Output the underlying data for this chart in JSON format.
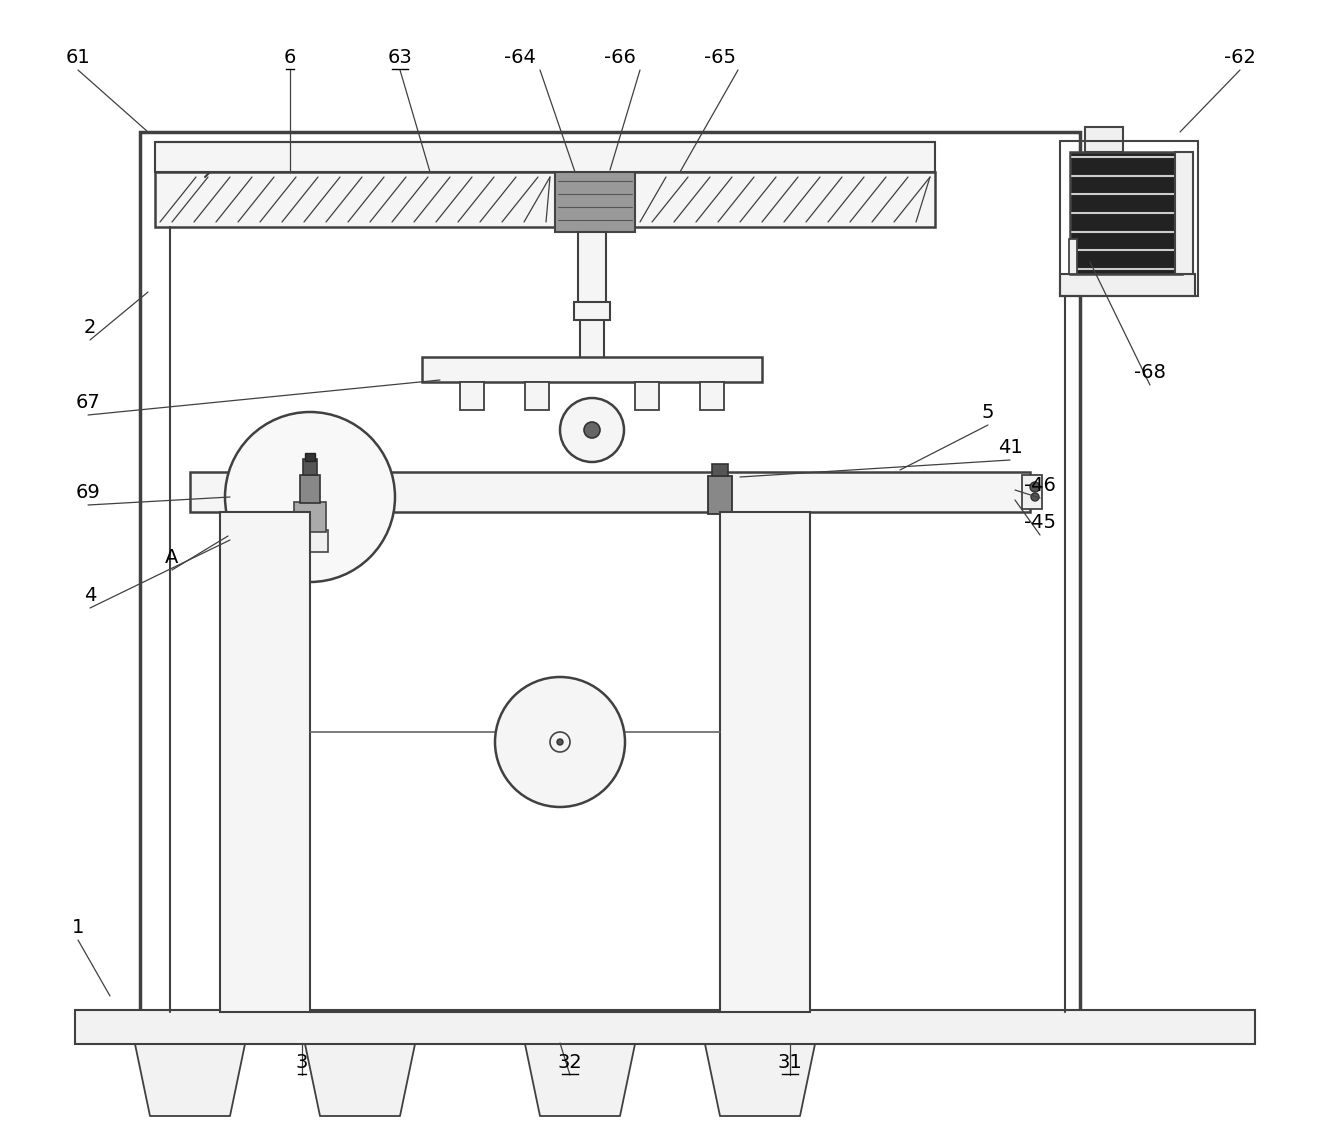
{
  "bg_color": "#ffffff",
  "lc": "#404040",
  "lw": 1.8,
  "fig_w": 13.27,
  "fig_h": 11.32,
  "dpi": 100
}
